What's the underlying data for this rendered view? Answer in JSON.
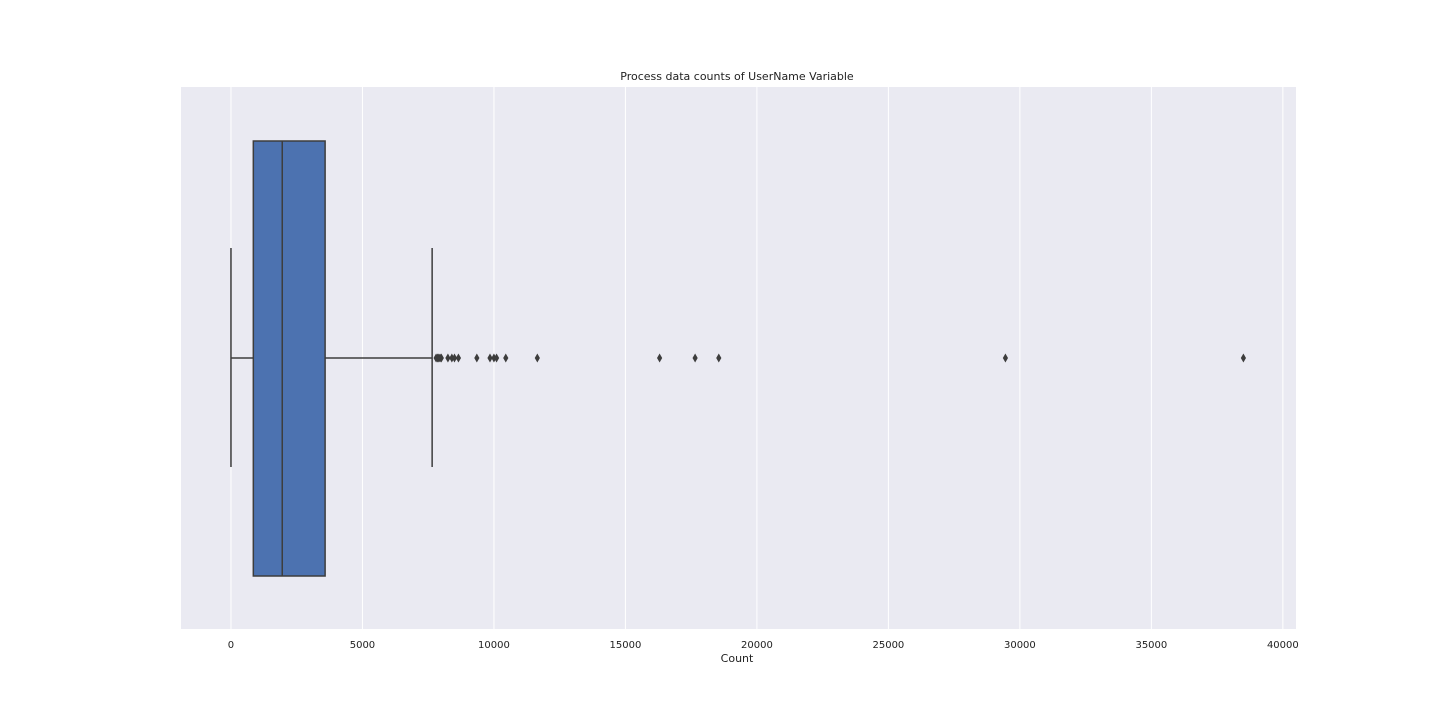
{
  "chart_data": {
    "type": "box",
    "orientation": "horizontal",
    "title": "Process data counts of UserName Variable",
    "xlabel": "Count",
    "ylabel": "",
    "xlim": [
      -1900,
      40500
    ],
    "x_ticks": [
      0,
      5000,
      10000,
      15000,
      20000,
      25000,
      30000,
      35000,
      40000
    ],
    "x_tick_labels": [
      "0",
      "5000",
      "10000",
      "15000",
      "20000",
      "25000",
      "30000",
      "35000",
      "40000"
    ],
    "grid": true,
    "box": {
      "whisker_low": 0,
      "q1": 850,
      "median": 1950,
      "q3": 3580,
      "whisker_high": 7650
    },
    "outliers": [
      7800,
      7850,
      7900,
      7950,
      8000,
      8250,
      8400,
      8500,
      8650,
      9350,
      9850,
      10000,
      10100,
      10450,
      11650,
      16300,
      17650,
      18550,
      29450,
      38500
    ],
    "colors": {
      "background": "#eaeaf2",
      "grid": "#ffffff",
      "box_fill": "#4c72b0",
      "lines": "#3d3d3d"
    }
  }
}
